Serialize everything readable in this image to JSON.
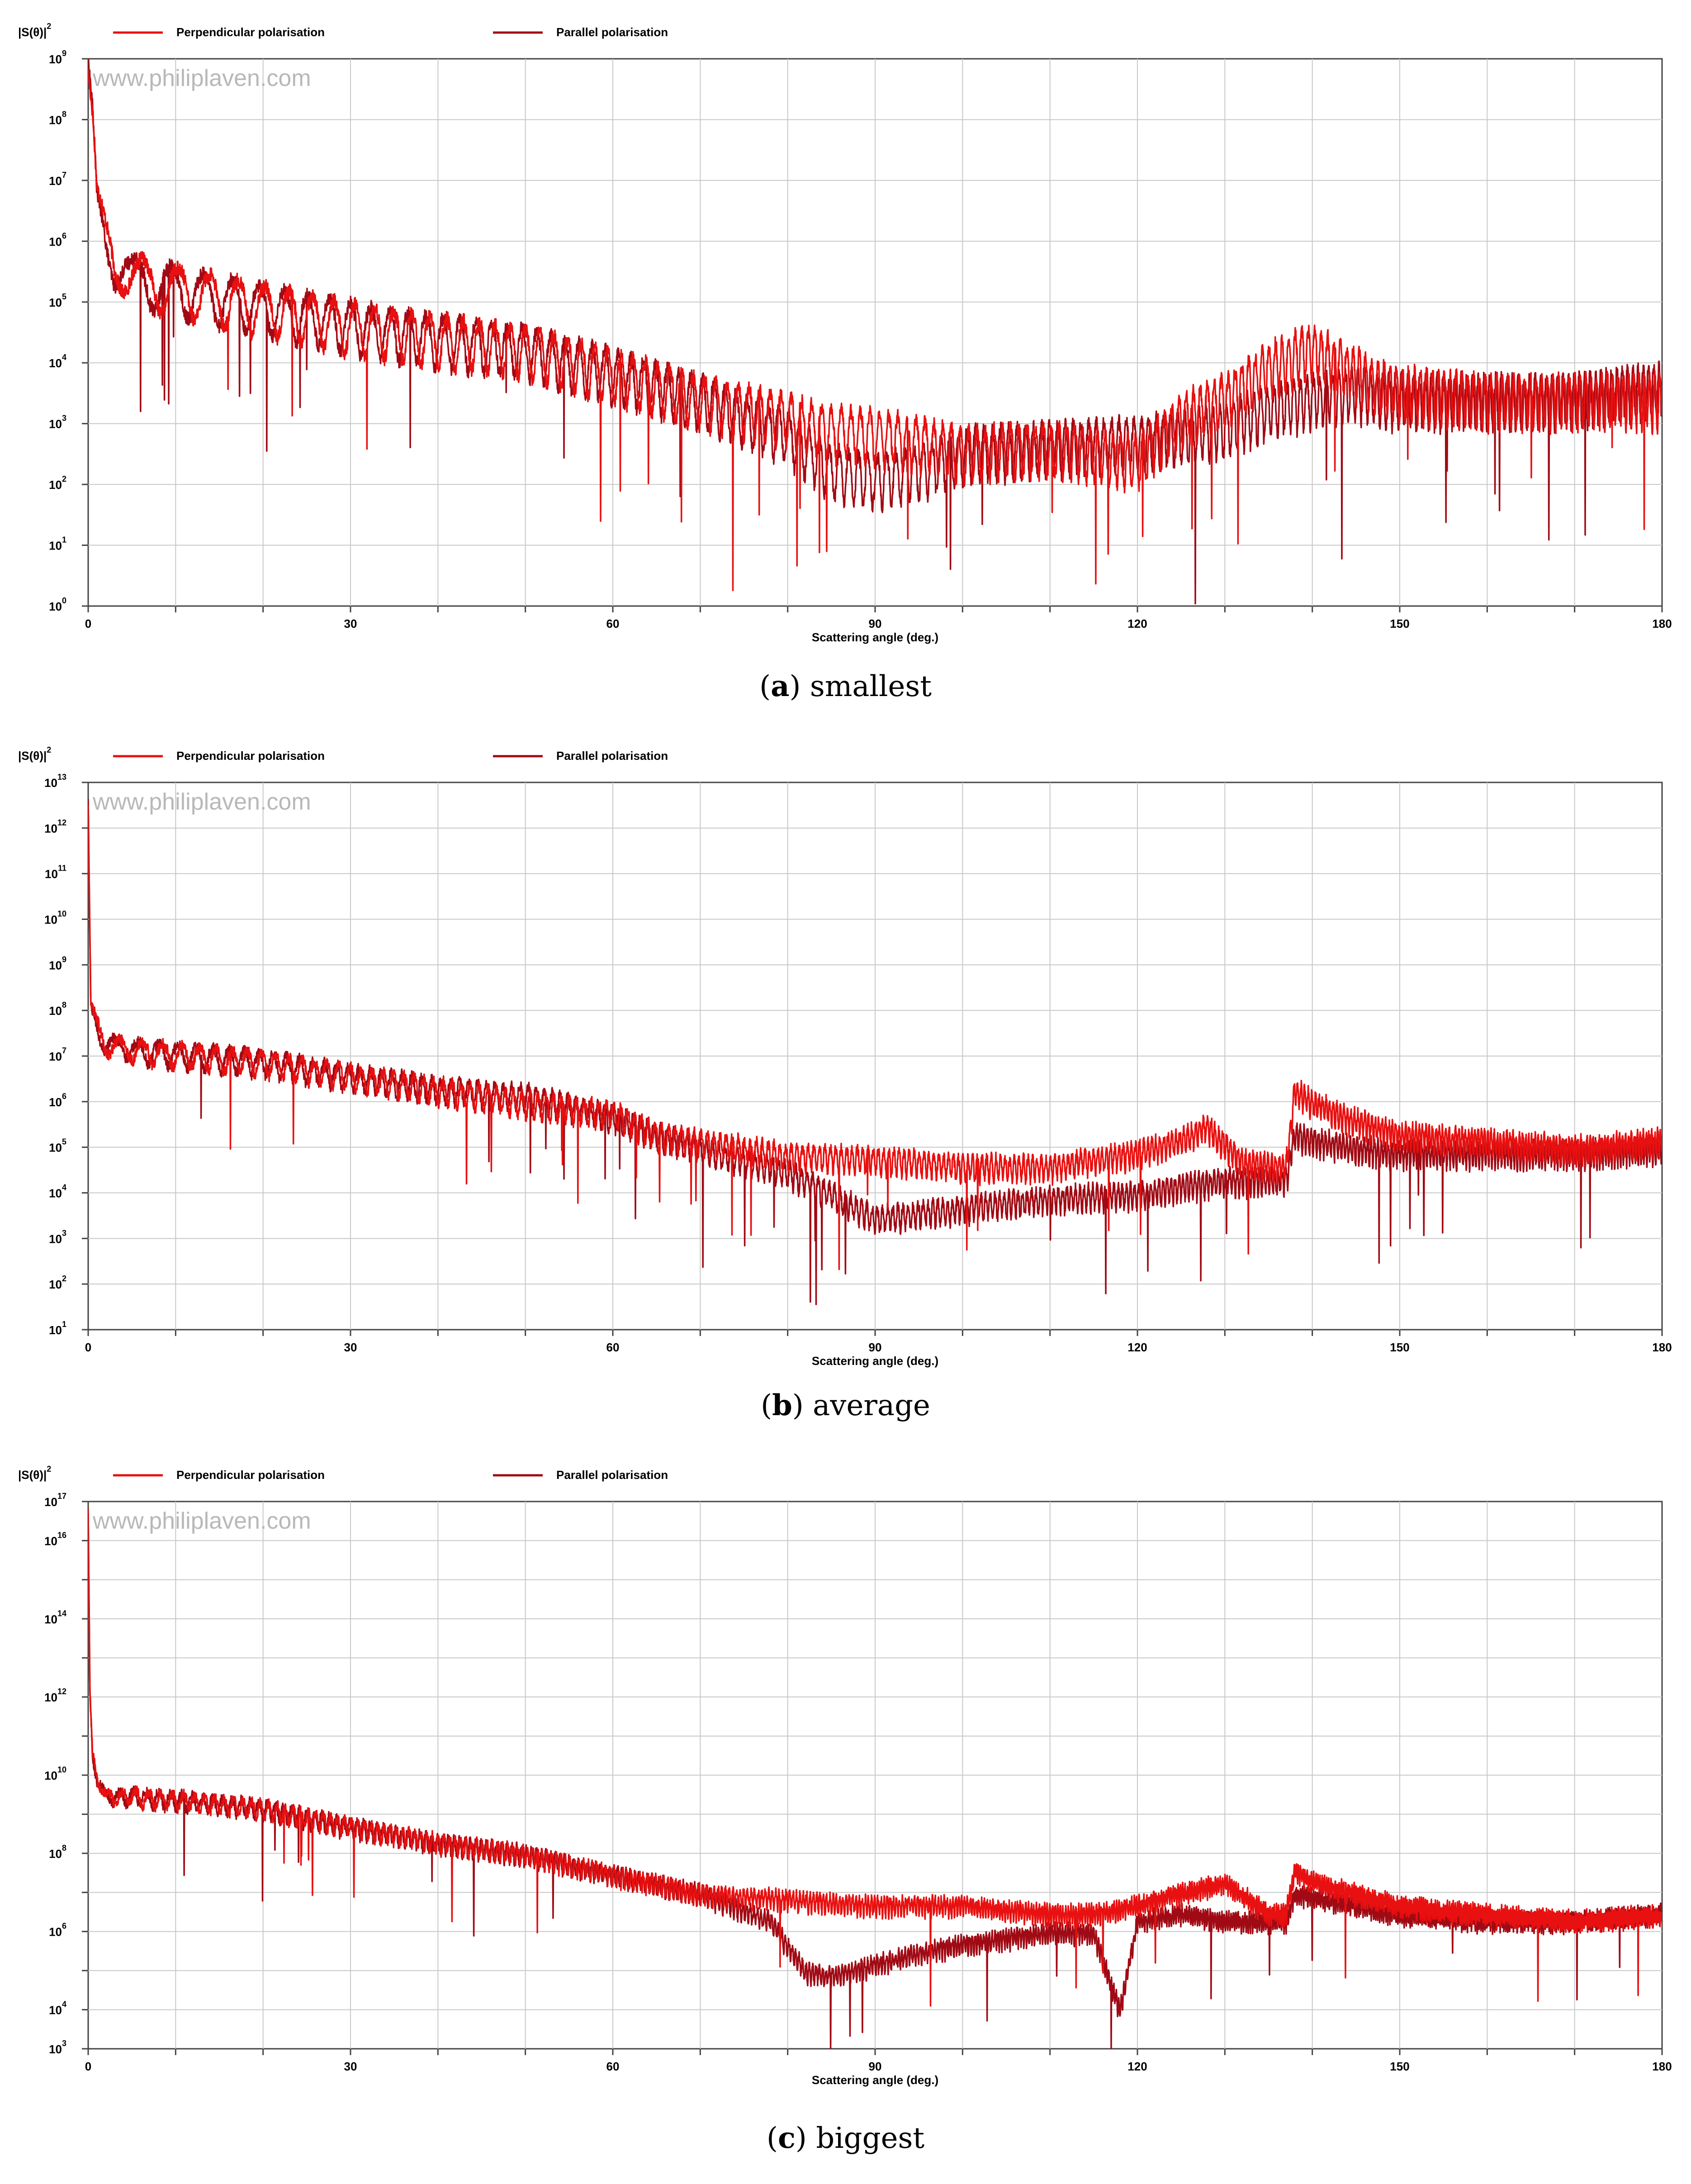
{
  "chart_data": [
    {
      "panel_label": "a",
      "caption": "smallest",
      "type": "line",
      "ylabel": "|S(θ)|",
      "ylabel_sup": "2",
      "xlabel": "Scattering angle (deg.)",
      "watermark": "www.philiplaven.com",
      "xlim": [
        0,
        180
      ],
      "x_ticks": [
        "0",
        "30",
        "60",
        "90",
        "120",
        "150",
        "180"
      ],
      "y_scale": "log",
      "ylim": [
        1,
        1000000000
      ],
      "y_tick_exponents": [
        "0",
        "1",
        "2",
        "3",
        "4",
        "5",
        "6",
        "7",
        "8",
        "9"
      ],
      "y_tick_base": "10",
      "grid": true,
      "legend_position": "top",
      "series": [
        {
          "name": "Perpendicular polarisation",
          "color": "#e81010",
          "x": [
            0,
            0.5,
            1,
            2,
            3,
            5,
            10,
            20,
            30,
            40,
            50,
            60,
            70,
            80,
            85,
            90,
            95,
            100,
            110,
            120,
            125,
            130,
            135,
            140,
            145,
            150,
            160,
            170,
            180
          ],
          "y": [
            600000000,
            100000000,
            5000000,
            1500000,
            500000,
            300000,
            200000,
            100000,
            50000,
            30000,
            20000,
            8000,
            3000,
            1500,
            900,
            800,
            600,
            400,
            500,
            300,
            1500,
            3000,
            10000,
            20000,
            8000,
            4000,
            3000,
            3000,
            3000
          ]
        },
        {
          "name": "Parallel polarisation",
          "color": "#a00a14",
          "x": [
            0,
            0.5,
            1,
            2,
            3,
            5,
            10,
            20,
            30,
            40,
            50,
            60,
            70,
            80,
            85,
            90,
            95,
            100,
            110,
            120,
            125,
            130,
            135,
            140,
            145,
            150,
            160,
            170,
            180
          ],
          "y": [
            600000000,
            100000000,
            5000000,
            1500000,
            500000,
            300000,
            200000,
            100000,
            50000,
            30000,
            20000,
            8000,
            3000,
            800,
            200,
            150,
            200,
            400,
            500,
            600,
            800,
            1000,
            2000,
            3000,
            4000,
            3000,
            3000,
            3000,
            5000
          ]
        }
      ]
    },
    {
      "panel_label": "b",
      "caption": "average",
      "type": "line",
      "ylabel": "|S(θ)|",
      "ylabel_sup": "2",
      "xlabel": "Scattering angle (deg.)",
      "watermark": "www.philiplaven.com",
      "xlim": [
        0,
        180
      ],
      "x_ticks": [
        "0",
        "30",
        "60",
        "90",
        "120",
        "150",
        "180"
      ],
      "y_scale": "log",
      "ylim": [
        10,
        10000000000000
      ],
      "y_tick_exponents": [
        "1",
        "2",
        "3",
        "4",
        "5",
        "6",
        "7",
        "8",
        "9",
        "10",
        "11",
        "12",
        "13"
      ],
      "y_tick_base": "10",
      "grid": true,
      "legend_position": "top",
      "series": [
        {
          "name": "Perpendicular polarisation",
          "color": "#e81010",
          "x": [
            0,
            0.3,
            1,
            2,
            5,
            10,
            20,
            30,
            40,
            50,
            60,
            65,
            70,
            80,
            90,
            100,
            110,
            120,
            125,
            128,
            132,
            137,
            138,
            140,
            145,
            150,
            160,
            170,
            180
          ],
          "y": [
            3000000000000,
            100000000,
            50000000,
            20000000,
            15000000,
            12000000,
            8000000,
            4000000,
            2000000,
            1000000,
            600000,
            200000,
            150000,
            70000,
            60000,
            40000,
            40000,
            80000,
            150000,
            300000,
            50000,
            40000,
            2000000,
            1000000,
            400000,
            200000,
            150000,
            100000,
            150000
          ]
        },
        {
          "name": "Parallel polarisation",
          "color": "#a00a14",
          "x": [
            0,
            0.3,
            1,
            2,
            5,
            10,
            20,
            30,
            40,
            50,
            60,
            65,
            70,
            80,
            85,
            90,
            100,
            110,
            120,
            125,
            130,
            137,
            138,
            140,
            145,
            150,
            160,
            170,
            180
          ],
          "y": [
            3000000000000,
            100000000,
            50000000,
            20000000,
            15000000,
            12000000,
            8000000,
            4000000,
            2000000,
            1500000,
            500000,
            200000,
            100000,
            30000,
            10000,
            3000,
            5000,
            8000,
            10000,
            15000,
            20000,
            20000,
            200000,
            150000,
            100000,
            80000,
            80000,
            80000,
            100000
          ]
        }
      ]
    },
    {
      "panel_label": "c",
      "caption": "biggest",
      "type": "line",
      "ylabel": "|S(θ)|",
      "ylabel_sup": "2",
      "xlabel": "Scattering angle (deg.)",
      "watermark": "www.philiplaven.com",
      "xlim": [
        0,
        180
      ],
      "x_ticks": [
        "0",
        "30",
        "60",
        "90",
        "120",
        "150",
        "180"
      ],
      "y_scale": "log",
      "ylim": [
        1000,
        100000000000000000
      ],
      "y_tick_labels": [
        {
          "value_exp": 3,
          "exp": "3"
        },
        {
          "value_exp": 4,
          "exp": "4"
        },
        {
          "value_exp": 6,
          "exp": "6"
        },
        {
          "value_exp": 8,
          "exp": "8"
        },
        {
          "value_exp": 10,
          "exp": "10"
        },
        {
          "value_exp": 12,
          "exp": "12"
        },
        {
          "value_exp": 14,
          "exp": "14"
        },
        {
          "value_exp": 16,
          "exp": "16"
        },
        {
          "value_exp": 17,
          "exp": "17"
        }
      ],
      "y_tick_base": "10",
      "grid": true,
      "legend_position": "top",
      "series": [
        {
          "name": "Perpendicular polarisation",
          "color": "#e81010",
          "x": [
            0,
            0.2,
            0.5,
            1,
            2,
            5,
            10,
            20,
            30,
            40,
            50,
            60,
            70,
            80,
            90,
            100,
            110,
            115,
            120,
            125,
            130,
            135,
            137,
            138,
            140,
            145,
            150,
            160,
            170,
            180
          ],
          "y": [
            50000000000000000,
            1000000000000,
            30000000000,
            10000000000,
            3000000000,
            3000000000,
            2500000000,
            1500000000,
            500000000,
            200000000,
            100000000,
            30000000,
            10000000,
            7000000,
            5000000,
            5000000,
            3000000,
            3000000,
            5000000,
            10000000,
            20000000,
            3000000,
            3000000,
            40000000,
            20000000,
            10000000,
            5000000,
            3000000,
            2000000,
            3000000
          ]
        },
        {
          "name": "Parallel polarisation",
          "color": "#a00a14",
          "x": [
            0,
            0.2,
            0.5,
            1,
            2,
            5,
            10,
            20,
            30,
            40,
            50,
            60,
            70,
            78,
            82,
            85,
            90,
            95,
            100,
            110,
            115,
            118,
            120,
            125,
            130,
            135,
            137,
            138,
            140,
            145,
            150,
            160,
            170,
            180
          ],
          "y": [
            50000000000000000,
            1000000000000,
            30000000000,
            10000000000,
            3000000000,
            3000000000,
            2500000000,
            1500000000,
            500000000,
            200000000,
            100000000,
            30000000,
            10000000,
            2000000,
            100000,
            80000,
            150000,
            300000,
            500000,
            1000000,
            1000000,
            10000,
            2000000,
            3000000,
            2000000,
            2000000,
            2000000,
            10000000,
            8000000,
            5000000,
            3000000,
            2000000,
            2000000,
            3000000
          ]
        }
      ]
    }
  ]
}
